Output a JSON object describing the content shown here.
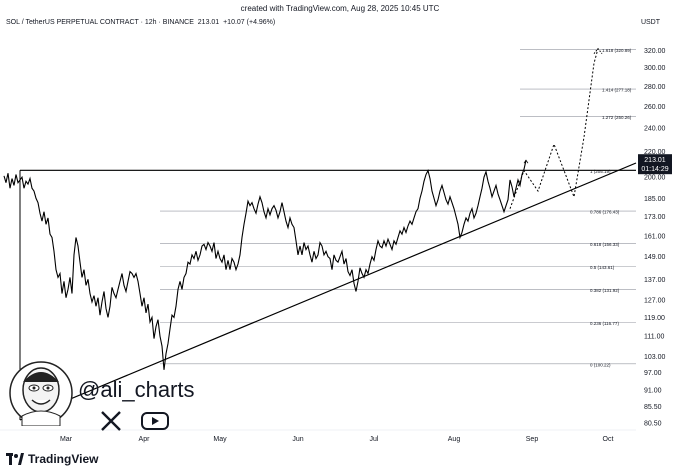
{
  "header": {
    "created": "created with TradingView.com, Aug 28, 2025 10:45 UTC",
    "symbol": "SOL / TetherUS PERPETUAL CONTRACT · 12h · BINANCE",
    "price": "213.01",
    "change": "+10.07 (+4.96%)",
    "currency": "USDT"
  },
  "price_label": {
    "value": "213.01",
    "countdown": "01:14:29"
  },
  "brand": {
    "name": "TradingView"
  },
  "watermark": {
    "handle": "@ali_charts",
    "icons": [
      "x-logo-icon",
      "youtube-icon"
    ]
  },
  "colors": {
    "line": "#000000",
    "grid": "#d1d4dc",
    "price_badge": "#131722"
  },
  "chart_data": {
    "type": "line",
    "y_axis": {
      "scale": "log",
      "ticks": [
        "320.00",
        "300.00",
        "280.00",
        "260.00",
        "240.00",
        "220.00",
        "200.00",
        "185.00",
        "173.00",
        "161.00",
        "149.00",
        "137.00",
        "127.00",
        "119.00",
        "111.00",
        "103.00",
        "97.00",
        "91.00",
        "85.50",
        "80.50"
      ],
      "range": [
        79,
        345
      ]
    },
    "x_axis": {
      "ticks": [
        "Mar",
        "Apr",
        "May",
        "Jun",
        "Jul",
        "Aug",
        "Sep",
        "Oct"
      ]
    },
    "fib_levels": [
      {
        "label": "1.618 (320.89)",
        "value": 320.89
      },
      {
        "label": "1.414 (277.18)",
        "value": 277.18
      },
      {
        "label": "1.272 (250.26)",
        "value": 250.26
      },
      {
        "label": "1 (205.19)",
        "value": 205.19
      },
      {
        "label": "0.786 (176.43)",
        "value": 176.43
      },
      {
        "label": "0.618 (156.33)",
        "value": 156.33
      },
      {
        "label": "0.5 (143.61)",
        "value": 143.61
      },
      {
        "label": "0.382 (131.92)",
        "value": 131.92
      },
      {
        "label": "0.236 (116.77)",
        "value": 116.77
      },
      {
        "label": "0 (100.22)",
        "value": 100.22
      }
    ],
    "series": [
      {
        "values": [
          [
            0,
            201
          ],
          [
            2,
            196
          ],
          [
            4,
            203
          ],
          [
            6,
            192
          ],
          [
            8,
            199
          ],
          [
            10,
            194
          ],
          [
            12,
            202
          ],
          [
            14,
            196
          ],
          [
            16,
            198
          ],
          [
            18,
            200
          ],
          [
            20,
            192
          ],
          [
            22,
            197
          ],
          [
            24,
            195
          ],
          [
            26,
            199
          ],
          [
            28,
            192
          ],
          [
            30,
            190
          ],
          [
            32,
            185
          ],
          [
            34,
            182
          ],
          [
            36,
            175
          ],
          [
            38,
            170
          ],
          [
            40,
            176
          ],
          [
            42,
            168
          ],
          [
            44,
            172
          ],
          [
            46,
            162
          ],
          [
            48,
            160
          ],
          [
            50,
            152
          ],
          [
            52,
            142
          ],
          [
            54,
            138
          ],
          [
            56,
            140
          ],
          [
            58,
            130
          ],
          [
            60,
            136
          ],
          [
            62,
            128
          ],
          [
            64,
            132
          ],
          [
            66,
            138
          ],
          [
            68,
            130
          ],
          [
            70,
            150
          ],
          [
            72,
            160
          ],
          [
            74,
            155
          ],
          [
            76,
            146
          ],
          [
            78,
            138
          ],
          [
            80,
            142
          ],
          [
            82,
            134
          ],
          [
            84,
            137
          ],
          [
            86,
            130
          ],
          [
            88,
            126
          ],
          [
            90,
            129
          ],
          [
            92,
            124
          ],
          [
            94,
            128
          ],
          [
            96,
            120
          ],
          [
            98,
            126
          ],
          [
            100,
            131
          ],
          [
            102,
            123
          ],
          [
            104,
            119
          ],
          [
            106,
            124
          ],
          [
            108,
            133
          ],
          [
            110,
            130
          ],
          [
            112,
            128
          ],
          [
            114,
            132
          ],
          [
            116,
            136
          ],
          [
            118,
            140
          ],
          [
            120,
            134
          ],
          [
            122,
            131
          ],
          [
            124,
            136
          ],
          [
            126,
            141
          ],
          [
            128,
            140
          ],
          [
            130,
            138
          ],
          [
            132,
            140
          ],
          [
            134,
            136
          ],
          [
            136,
            130
          ],
          [
            138,
            124
          ],
          [
            140,
            128
          ],
          [
            142,
            121
          ],
          [
            144,
            125
          ],
          [
            146,
            117
          ],
          [
            148,
            119
          ],
          [
            150,
            110
          ],
          [
            152,
            115
          ],
          [
            154,
            118
          ],
          [
            156,
            111
          ],
          [
            158,
            107
          ],
          [
            160,
            98
          ],
          [
            162,
            104
          ],
          [
            164,
            108
          ],
          [
            166,
            114
          ],
          [
            168,
            120
          ],
          [
            170,
            119
          ],
          [
            172,
            124
          ],
          [
            174,
            132
          ],
          [
            176,
            136
          ],
          [
            178,
            132
          ],
          [
            180,
            138
          ],
          [
            182,
            140
          ],
          [
            184,
            146
          ],
          [
            186,
            145
          ],
          [
            188,
            150
          ],
          [
            190,
            148
          ],
          [
            192,
            152
          ],
          [
            194,
            147
          ],
          [
            196,
            150
          ],
          [
            198,
            155
          ],
          [
            200,
            156
          ],
          [
            202,
            153
          ],
          [
            204,
            157
          ],
          [
            206,
            155
          ],
          [
            208,
            152
          ],
          [
            210,
            157
          ],
          [
            212,
            148
          ],
          [
            214,
            152
          ],
          [
            216,
            148
          ],
          [
            218,
            146
          ],
          [
            220,
            150
          ],
          [
            222,
            142
          ],
          [
            224,
            147
          ],
          [
            226,
            142
          ],
          [
            228,
            148
          ],
          [
            230,
            146
          ],
          [
            232,
            142
          ],
          [
            234,
            145
          ],
          [
            236,
            150
          ],
          [
            238,
            160
          ],
          [
            240,
            168
          ],
          [
            242,
            175
          ],
          [
            244,
            183
          ],
          [
            246,
            180
          ],
          [
            248,
            182
          ],
          [
            250,
            178
          ],
          [
            252,
            175
          ],
          [
            254,
            181
          ],
          [
            256,
            186
          ],
          [
            258,
            182
          ],
          [
            260,
            176
          ],
          [
            262,
            172
          ],
          [
            264,
            178
          ],
          [
            266,
            174
          ],
          [
            268,
            178
          ],
          [
            270,
            180
          ],
          [
            272,
            177
          ],
          [
            274,
            172
          ],
          [
            276,
            176
          ],
          [
            278,
            182
          ],
          [
            280,
            176
          ],
          [
            282,
            170
          ],
          [
            284,
            166
          ],
          [
            286,
            172
          ],
          [
            288,
            168
          ],
          [
            290,
            166
          ],
          [
            292,
            158
          ],
          [
            294,
            150
          ],
          [
            296,
            155
          ],
          [
            298,
            150
          ],
          [
            300,
            157
          ],
          [
            302,
            153
          ],
          [
            304,
            155
          ],
          [
            306,
            150
          ],
          [
            308,
            146
          ],
          [
            310,
            152
          ],
          [
            312,
            148
          ],
          [
            314,
            150
          ],
          [
            316,
            157
          ],
          [
            318,
            155
          ],
          [
            320,
            150
          ],
          [
            322,
            152
          ],
          [
            324,
            149
          ],
          [
            326,
            148
          ],
          [
            328,
            142
          ],
          [
            330,
            150
          ],
          [
            332,
            147
          ],
          [
            334,
            146
          ],
          [
            336,
            149
          ],
          [
            338,
            152
          ],
          [
            340,
            145
          ],
          [
            342,
            148
          ],
          [
            344,
            141
          ],
          [
            346,
            139
          ],
          [
            348,
            142
          ],
          [
            350,
            135
          ],
          [
            352,
            131
          ],
          [
            354,
            136
          ],
          [
            356,
            143
          ],
          [
            358,
            140
          ],
          [
            360,
            138
          ],
          [
            362,
            142
          ],
          [
            364,
            140
          ],
          [
            366,
            145
          ],
          [
            368,
            149
          ],
          [
            370,
            147
          ],
          [
            372,
            153
          ],
          [
            374,
            158
          ],
          [
            376,
            155
          ],
          [
            378,
            154
          ],
          [
            380,
            158
          ],
          [
            382,
            155
          ],
          [
            384,
            159
          ],
          [
            386,
            156
          ],
          [
            388,
            153
          ],
          [
            390,
            158
          ],
          [
            392,
            156
          ],
          [
            394,
            160
          ],
          [
            396,
            164
          ],
          [
            398,
            162
          ],
          [
            400,
            166
          ],
          [
            402,
            163
          ],
          [
            404,
            167
          ],
          [
            406,
            170
          ],
          [
            408,
            168
          ],
          [
            410,
            172
          ],
          [
            412,
            176
          ],
          [
            414,
            178
          ],
          [
            416,
            185
          ],
          [
            418,
            190
          ],
          [
            420,
            197
          ],
          [
            422,
            202
          ],
          [
            424,
            205
          ],
          [
            426,
            199
          ],
          [
            428,
            190
          ],
          [
            430,
            185
          ],
          [
            432,
            180
          ],
          [
            434,
            184
          ],
          [
            436,
            190
          ],
          [
            438,
            194
          ],
          [
            440,
            189
          ],
          [
            442,
            184
          ],
          [
            444,
            181
          ],
          [
            446,
            186
          ],
          [
            448,
            182
          ],
          [
            450,
            178
          ],
          [
            452,
            173
          ],
          [
            454,
            168
          ],
          [
            456,
            160
          ],
          [
            458,
            163
          ],
          [
            460,
            168
          ],
          [
            462,
            172
          ],
          [
            464,
            170
          ],
          [
            466,
            175
          ],
          [
            468,
            178
          ],
          [
            470,
            172
          ],
          [
            472,
            175
          ],
          [
            474,
            180
          ],
          [
            476,
            186
          ],
          [
            478,
            192
          ],
          [
            480,
            200
          ],
          [
            482,
            204
          ],
          [
            484,
            197
          ],
          [
            486,
            192
          ],
          [
            488,
            186
          ],
          [
            490,
            190
          ],
          [
            492,
            194
          ],
          [
            494,
            188
          ],
          [
            496,
            184
          ],
          [
            498,
            180
          ],
          [
            500,
            176
          ],
          [
            502,
            180
          ],
          [
            504,
            184
          ],
          [
            506,
            198
          ],
          [
            508,
            193
          ],
          [
            510,
            186
          ],
          [
            512,
            192
          ],
          [
            514,
            198
          ],
          [
            516,
            194
          ],
          [
            518,
            202
          ],
          [
            520,
            206
          ],
          [
            522,
            213
          ]
        ]
      }
    ],
    "projection": [
      [
        506,
        178
      ],
      [
        520,
        205
      ],
      [
        534,
        190
      ],
      [
        550,
        226
      ],
      [
        560,
        205
      ],
      [
        570,
        186
      ],
      [
        580,
        232
      ],
      [
        590,
        305
      ],
      [
        594,
        322
      ]
    ],
    "annotations": [
      "ascending triangle",
      "resistance at 1 (205.19)",
      "rising trendline support"
    ]
  }
}
